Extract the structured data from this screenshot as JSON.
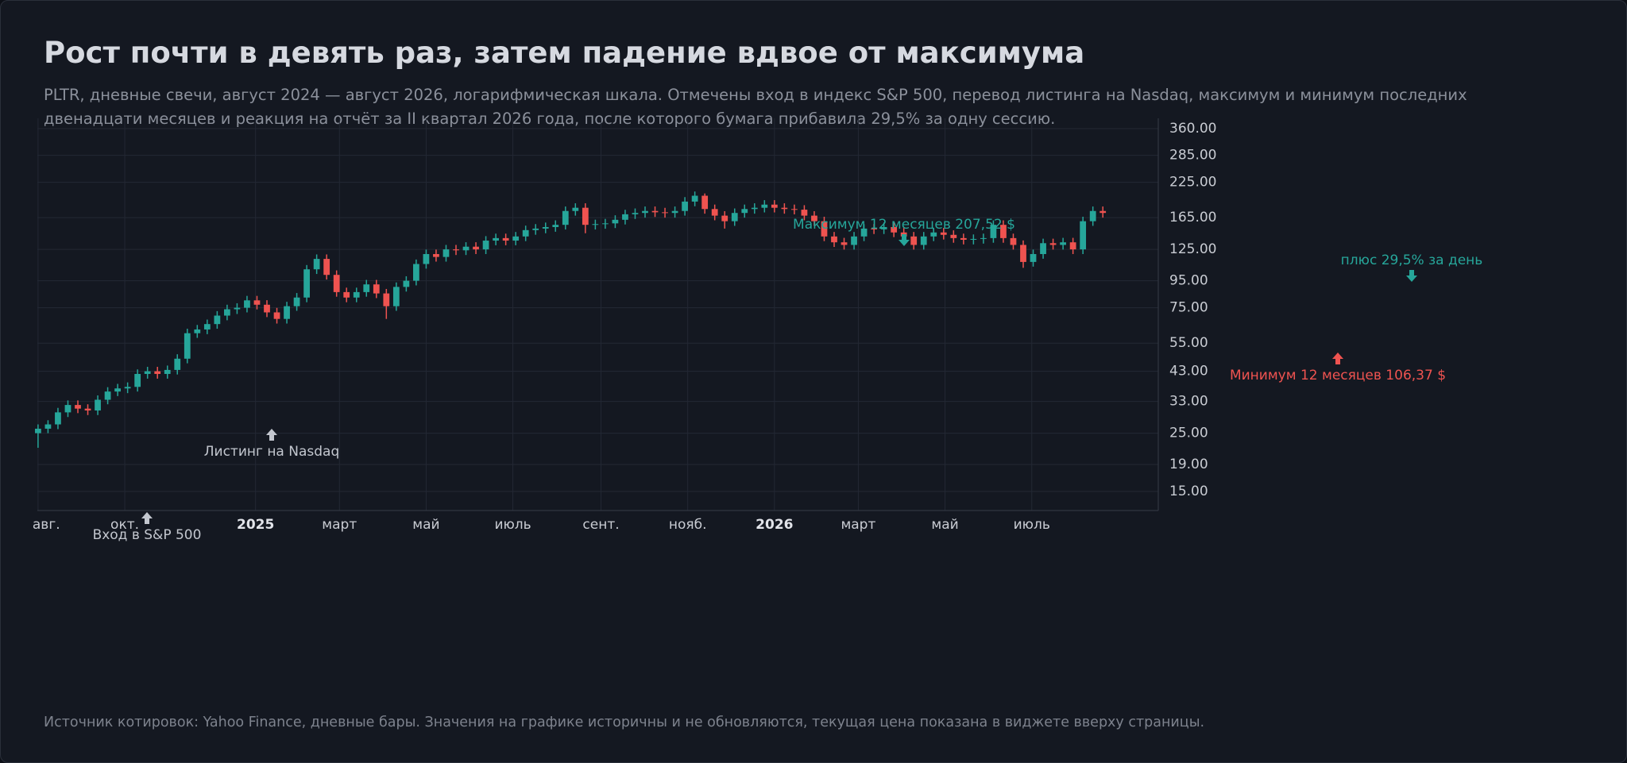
{
  "chart_data": {
    "type": "candlestick",
    "title": "Рост почти в девять раз, затем падение вдвое от максимума",
    "subtitle": "PLTR, дневные свечи, август 2024 — август 2026, логарифмическая шкала. Отмечены вход в индекс S&P 500, перевод листинга на Nasdaq, максимум и минимум последних двенадцати месяцев и реакция на отчёт за II квартал 2026 года, после которого бумага прибавила 29,5% за одну сессию.",
    "source": "Источник котировок: Yahoo Finance, дневные бары. Значения на графике историчны и не обновляются, текущая цена показана в виджете вверху страницы.",
    "log_scale": true,
    "grid": true,
    "up_color": "#26a69a",
    "down_color": "#ef5350",
    "xlim": [
      -0.5,
      788
    ],
    "ylim": [
      12.7,
      394
    ],
    "xticks": [
      {
        "value": 0,
        "label": "авг."
      },
      {
        "value": 61,
        "label": "окт."
      },
      {
        "value": 153,
        "label": "2025"
      },
      {
        "value": 212,
        "label": "март"
      },
      {
        "value": 273,
        "label": "май"
      },
      {
        "value": 334,
        "label": "июль"
      },
      {
        "value": 396,
        "label": "сент."
      },
      {
        "value": 457,
        "label": "нояб."
      },
      {
        "value": 518,
        "label": "2026"
      },
      {
        "value": 577,
        "label": "март"
      },
      {
        "value": 638,
        "label": "май"
      },
      {
        "value": 699,
        "label": "июль"
      }
    ],
    "yticks": [
      {
        "value": 360,
        "label": "360.00"
      },
      {
        "value": 285,
        "label": "285.00"
      },
      {
        "value": 225,
        "label": "225.00"
      },
      {
        "value": 165,
        "label": "165.00"
      },
      {
        "value": 125,
        "label": "125.00"
      },
      {
        "value": 95,
        "label": "95.00"
      },
      {
        "value": 75,
        "label": "75.00"
      },
      {
        "value": 55,
        "label": "55.00"
      },
      {
        "value": 43,
        "label": "43.00"
      },
      {
        "value": 33,
        "label": "33.00"
      },
      {
        "value": 25,
        "label": "25.00"
      },
      {
        "value": 19,
        "label": "19.00"
      },
      {
        "value": 15,
        "label": "15.00"
      }
    ],
    "x": [
      0,
      7,
      14,
      21,
      28,
      35,
      42,
      49,
      56,
      63,
      70,
      77,
      84,
      91,
      98,
      105,
      112,
      119,
      126,
      133,
      140,
      147,
      154,
      161,
      168,
      175,
      182,
      189,
      196,
      203,
      210,
      217,
      224,
      231,
      238,
      245,
      252,
      259,
      266,
      273,
      280,
      287,
      294,
      301,
      308,
      315,
      322,
      329,
      336,
      343,
      350,
      357,
      364,
      371,
      378,
      385,
      392,
      399,
      406,
      413,
      420,
      427,
      434,
      441,
      448,
      455,
      462,
      469,
      476,
      483,
      490,
      497,
      504,
      511,
      518,
      525,
      532,
      539,
      546,
      553,
      560,
      567,
      574,
      581,
      588,
      595,
      602,
      609,
      616,
      623,
      630,
      637,
      644,
      651,
      658,
      665,
      672,
      679,
      686,
      693,
      700,
      707,
      714,
      721,
      728,
      735,
      742,
      749
    ],
    "open": [
      25,
      26,
      27,
      30,
      32,
      31,
      30.5,
      33.5,
      36,
      37,
      37.5,
      42,
      43,
      42,
      43.5,
      48,
      60,
      62,
      65,
      70,
      74,
      75,
      80,
      77,
      72,
      68,
      76,
      82,
      105,
      115,
      100,
      86,
      82,
      86,
      92,
      85,
      76,
      90,
      95,
      110,
      120,
      117,
      125,
      124,
      128,
      125,
      135,
      138,
      135,
      140,
      148,
      150,
      152,
      155,
      175,
      180,
      155,
      156,
      157,
      162,
      170,
      172,
      175,
      173,
      172,
      175,
      190,
      200,
      178,
      168,
      160,
      172,
      178,
      180,
      185,
      180,
      178,
      177,
      168,
      160,
      140,
      133,
      130,
      140,
      150,
      149,
      152,
      145,
      140,
      130,
      140,
      145,
      142,
      138,
      136,
      137,
      138,
      155,
      138,
      130,
      112,
      120,
      132,
      130,
      133,
      125,
      160,
      175
    ],
    "high": [
      27,
      28,
      31.2,
      33.3,
      33.3,
      32.2,
      34.8,
      37.4,
      38.5,
      39,
      43.7,
      44.7,
      44.7,
      45.2,
      49.9,
      62.4,
      64.5,
      67.6,
      72.8,
      77,
      78,
      83.2,
      83.2,
      80.1,
      74.9,
      79,
      85.3,
      109,
      119.6,
      119.6,
      104,
      89.4,
      89.4,
      95.7,
      95.7,
      88.4,
      93.6,
      98.8,
      114.4,
      124.8,
      124.8,
      130,
      130,
      133.1,
      133.1,
      140.4,
      143.5,
      143.5,
      145.6,
      153.9,
      156,
      158.1,
      161.2,
      182,
      187.2,
      187.2,
      162.2,
      163.3,
      168.5,
      176.8,
      178.9,
      182,
      182,
      179.9,
      182,
      197.6,
      207.52,
      204,
      185.1,
      174.7,
      178.9,
      185.1,
      187.2,
      192.4,
      192.4,
      187.2,
      185.1,
      184.1,
      174.7,
      166.4,
      145.6,
      138.3,
      145.6,
      156,
      156,
      158.1,
      158.1,
      150.8,
      145.6,
      145.6,
      150.8,
      150.8,
      147.7,
      143.5,
      142.5,
      143.5,
      161.2,
      161.2,
      143.5,
      135.2,
      124.8,
      137.3,
      137.3,
      138.3,
      138.3,
      166.4,
      182,
      182
    ],
    "low": [
      22,
      25,
      25.9,
      28.8,
      29.8,
      29.3,
      29.3,
      32.2,
      34.6,
      35.5,
      36,
      40.3,
      40.3,
      40.3,
      41.8,
      46.1,
      57.6,
      59.5,
      62.4,
      67.2,
      71,
      72,
      73.9,
      69.1,
      65.3,
      65.3,
      73,
      78.7,
      100.8,
      96,
      82.6,
      78.7,
      78.7,
      82.6,
      81.6,
      68,
      73,
      86.4,
      91.2,
      105.6,
      112.3,
      112.3,
      119,
      119,
      120,
      120,
      129.6,
      129.6,
      129.6,
      134.4,
      142.1,
      144,
      145.9,
      148.8,
      168,
      144,
      148.8,
      149.8,
      150.7,
      155.5,
      163.2,
      165.1,
      166.1,
      165.1,
      165.1,
      168,
      182.4,
      170.9,
      161.3,
      150,
      153.6,
      165.1,
      170.9,
      172.8,
      172.8,
      170.9,
      169.9,
      161.3,
      153.6,
      134.4,
      127.7,
      124.8,
      124.8,
      134.4,
      143,
      143,
      139.2,
      134.4,
      124.8,
      124.8,
      134.4,
      136.3,
      132.5,
      130.6,
      130.6,
      131.5,
      132.5,
      132.5,
      124.8,
      106.37,
      107.5,
      115.2,
      124.8,
      124.8,
      120,
      120,
      153.6,
      165.1
    ],
    "close": [
      26,
      27,
      30,
      32,
      31,
      30.5,
      33.5,
      36,
      37,
      37.5,
      42,
      43,
      42,
      43.5,
      48,
      60,
      62,
      65,
      70,
      74,
      75,
      80,
      77,
      72,
      68,
      76,
      82,
      105,
      115,
      100,
      86,
      82,
      86,
      92,
      85,
      76,
      90,
      95,
      110,
      120,
      117,
      125,
      124,
      128,
      125,
      135,
      138,
      135,
      140,
      148,
      150,
      152,
      155,
      175,
      180,
      155,
      156,
      157,
      162,
      170,
      172,
      175,
      173,
      172,
      175,
      190,
      200,
      178,
      168,
      160,
      172,
      178,
      180,
      185,
      180,
      178,
      177,
      168,
      160,
      140,
      133,
      130,
      140,
      150,
      149,
      152,
      145,
      140,
      130,
      140,
      145,
      142,
      138,
      136,
      137,
      138,
      155,
      138,
      130,
      112,
      120,
      132,
      130,
      133,
      125,
      160,
      175,
      172
    ],
    "annotations": [
      {
        "text": "Вход в S&P 500",
        "color": "#c3c7cf"
      },
      {
        "text": "Листинг на Nasdaq",
        "color": "#c3c7cf"
      },
      {
        "text": "Максимум 12 месяцев 207,52 $",
        "color": "#26a69a"
      },
      {
        "text": "плюс 29,5% за день",
        "color": "#26a69a"
      },
      {
        "text": "Минимум 12 месяцев 106,37 $",
        "color": "#ef5350"
      }
    ]
  }
}
